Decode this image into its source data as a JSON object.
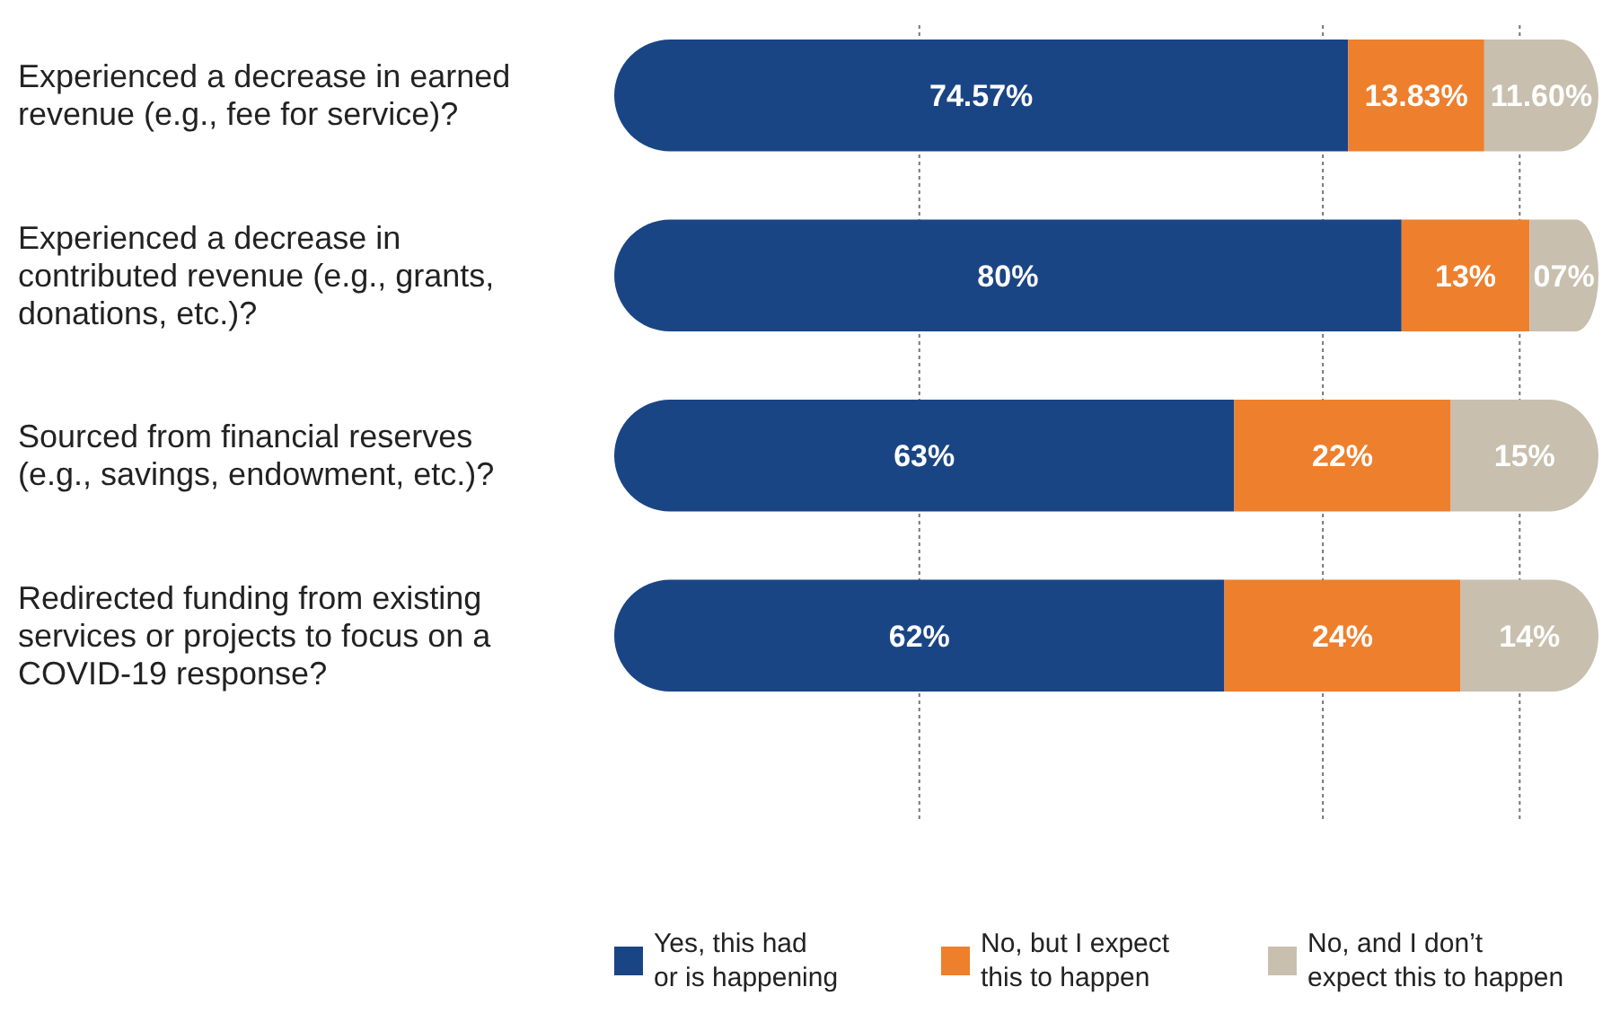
{
  "chart_data": {
    "type": "bar",
    "orientation": "horizontal",
    "stacked": true,
    "categories": [
      "Experienced a decrease in earned revenue (e.g., fee for service)?",
      "Experienced a decrease in contributed revenue (e.g., grants, donations, etc.)?",
      "Sourced from financial reserves (e.g., savings, endowment, etc.)?",
      "Redirected funding from existing services or projects to focus on a COVID-19 response?"
    ],
    "series": [
      {
        "name": "Yes, this had or is happening",
        "color": "#1a4585",
        "values": [
          74.57,
          80,
          63,
          62
        ],
        "value_labels": [
          "74.57%",
          "80%",
          "63%",
          "62%"
        ]
      },
      {
        "name": "No, but I expect this to happen",
        "color": "#ee7f2d",
        "values": [
          13.83,
          13,
          22,
          24
        ],
        "value_labels": [
          "13.83%",
          "13%",
          "22%",
          "24%"
        ]
      },
      {
        "name": "No, and I don’t expect this to happen",
        "color": "#c8bfae",
        "values": [
          11.6,
          7,
          15,
          14
        ],
        "value_labels": [
          "11.60%",
          "07%",
          "15%",
          "14%"
        ]
      }
    ],
    "xlim": [
      0,
      100
    ],
    "xticks": [
      {
        "value": 31,
        "label": null
      },
      {
        "value": 72,
        "label": null
      },
      {
        "value": 92,
        "label": null
      }
    ],
    "grid": "x",
    "tick_labels": "y",
    "legend": "bottom"
  }
}
